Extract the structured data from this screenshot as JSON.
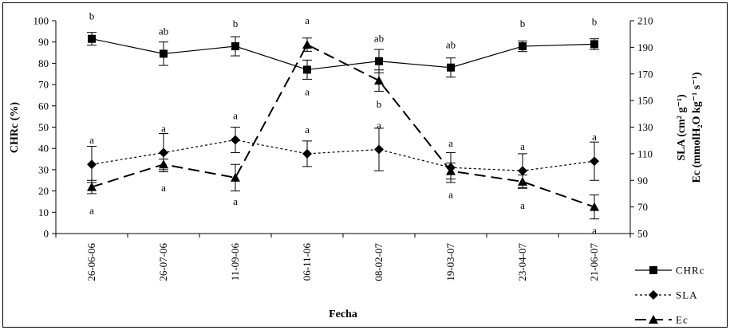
{
  "chart_data": {
    "type": "line",
    "categories": [
      "26-06-06",
      "26-07-06",
      "11-09-06",
      "06-11-06",
      "08-02-07",
      "19-03-07",
      "23-04-07",
      "21-06-07"
    ],
    "xlabel": "Fecha",
    "ylabel_left": "CHRc (%)",
    "ylabel_right_1": "SLA (cm² g⁻¹)",
    "ylabel_right_2": "Ec (mmolH₂O kg⁻¹ s⁻¹)",
    "ylim_left": [
      0,
      100
    ],
    "ylim_right": [
      50,
      210
    ],
    "yticks_left": [
      "0",
      "10",
      "20",
      "30",
      "40",
      "50",
      "60",
      "70",
      "80",
      "90",
      "100"
    ],
    "yticks_right": [
      "50",
      "70",
      "90",
      "110",
      "130",
      "150",
      "170",
      "190",
      "210"
    ],
    "grid": false,
    "legend_position": "bottom-right",
    "series": [
      {
        "name": "CHRc",
        "axis": "left",
        "marker": "square",
        "line_style": "solid",
        "values": [
          91.5,
          84.5,
          88,
          77,
          81,
          78,
          88,
          89
        ],
        "errors": [
          3,
          5.5,
          4.5,
          4.5,
          5.5,
          4.5,
          2.5,
          2.5
        ],
        "letters": [
          "b",
          "ab",
          "b",
          "a",
          "ab",
          "ab",
          "b",
          "b"
        ]
      },
      {
        "name": "SLA",
        "axis": "left",
        "marker": "diamond",
        "line_style": "dotted",
        "values": [
          32.5,
          38,
          44,
          37.5,
          39.5,
          31,
          29.5,
          34
        ],
        "errors": [
          8.5,
          9,
          6,
          6,
          10,
          7,
          8,
          9
        ],
        "letters": [
          "a",
          "a",
          "a",
          "a",
          "a",
          "a",
          "a",
          "a"
        ]
      },
      {
        "name": "Ec",
        "axis": "right",
        "marker": "triangle",
        "line_style": "dashed",
        "values": [
          85,
          102,
          92,
          192,
          165,
          97,
          89,
          70
        ],
        "errors": [
          5,
          4,
          10,
          5,
          8,
          6,
          5,
          9
        ],
        "letters": [
          "a",
          "a",
          "a",
          "a",
          "b",
          "a",
          "a",
          "a"
        ]
      }
    ]
  }
}
